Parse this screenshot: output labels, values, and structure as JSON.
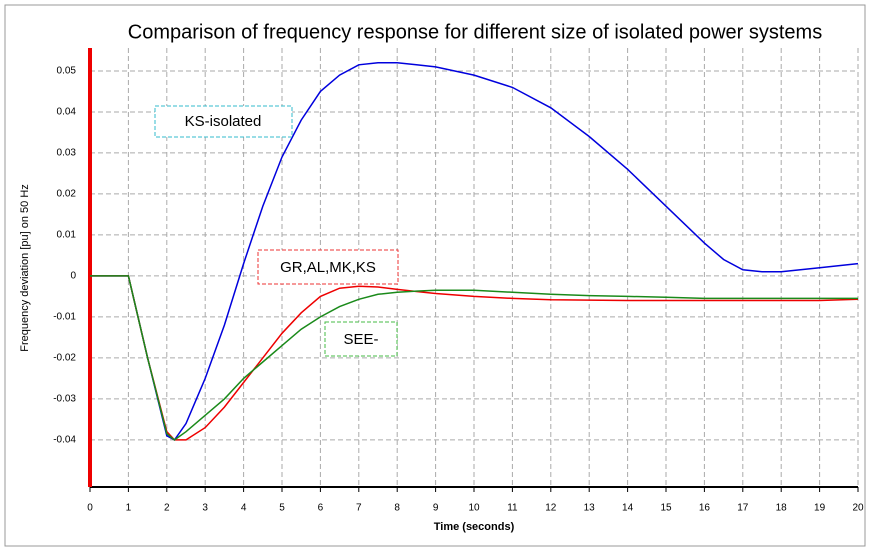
{
  "chart_data": {
    "type": "line",
    "title": "Comparison of frequency response for different size of isolated power systems",
    "xlabel": "Time (seconds)",
    "ylabel": "Frequency deviation [pu] on 50 Hz",
    "x": [
      0,
      1,
      1.5,
      2,
      2.2,
      2.5,
      3,
      3.5,
      4,
      4.5,
      5,
      5.5,
      6,
      6.5,
      7,
      7.5,
      8,
      8.5,
      9,
      10,
      11,
      12,
      13,
      14,
      15,
      16,
      16.5,
      17,
      17.5,
      18,
      19,
      20
    ],
    "series": [
      {
        "name": "KS-isolated",
        "color": "#0000dd",
        "values": [
          0,
          0,
          -0.02,
          -0.039,
          -0.04,
          -0.036,
          -0.025,
          -0.012,
          0.003,
          0.017,
          0.029,
          0.038,
          0.045,
          0.049,
          0.0515,
          0.052,
          0.052,
          0.0515,
          0.051,
          0.049,
          0.046,
          0.041,
          0.034,
          0.026,
          0.017,
          0.008,
          0.004,
          0.0015,
          0.001,
          0.001,
          0.002,
          0.003
        ]
      },
      {
        "name": "GR,AL,MK,KS",
        "color": "#ee0000",
        "values": [
          0,
          0,
          -0.02,
          -0.038,
          -0.04,
          -0.04,
          -0.037,
          -0.032,
          -0.026,
          -0.02,
          -0.014,
          -0.009,
          -0.005,
          -0.003,
          -0.0025,
          -0.0027,
          -0.0033,
          -0.0038,
          -0.0043,
          -0.005,
          -0.0055,
          -0.0058,
          -0.0059,
          -0.006,
          -0.006,
          -0.006,
          -0.006,
          -0.006,
          -0.006,
          -0.006,
          -0.006,
          -0.0057
        ]
      },
      {
        "name": "SEE-",
        "color": "#1a8a1a",
        "values": [
          0,
          0,
          -0.02,
          -0.0385,
          -0.04,
          -0.038,
          -0.034,
          -0.03,
          -0.025,
          -0.021,
          -0.017,
          -0.013,
          -0.01,
          -0.0075,
          -0.0057,
          -0.0045,
          -0.004,
          -0.0037,
          -0.0035,
          -0.0035,
          -0.004,
          -0.0045,
          -0.0048,
          -0.005,
          -0.0052,
          -0.0055,
          -0.0055,
          -0.0055,
          -0.0055,
          -0.0055,
          -0.0055,
          -0.0055
        ]
      }
    ],
    "xlim": [
      0,
      20
    ],
    "xticks": [
      0,
      1,
      2,
      3,
      4,
      5,
      6,
      7,
      8,
      9,
      10,
      11,
      12,
      13,
      14,
      15,
      16,
      17,
      18,
      19,
      20
    ],
    "ylim": [
      -0.0515,
      0.0556
    ],
    "yticks": [
      -0.04,
      -0.03,
      -0.02,
      -0.01,
      0,
      0.01,
      0.02,
      0.03,
      0.04,
      0.05
    ],
    "grid": true
  }
}
